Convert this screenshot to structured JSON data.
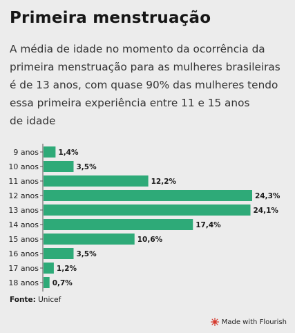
{
  "title": "Primeira menstruação",
  "subtitle_lines": [
    "A média de idade no momento da ocorrência da",
    "primeira menstruação para as mulheres brasileiras",
    "é de 13 anos, com quase 90% das mulheres tendo",
    "essa primeira experiência entre 11 e 15 anos",
    "de idade"
  ],
  "source_label": "Fonte:",
  "source_value": "Unicef",
  "credit": "Made with Flourish",
  "colors": {
    "bar": "#2eaa78",
    "background": "#ececec",
    "logo": "#d63b2f"
  },
  "chart_data": {
    "type": "bar",
    "orientation": "horizontal",
    "categories": [
      "9 anos",
      "10 anos",
      "11 anos",
      "12 anos",
      "13 anos",
      "14 anos",
      "15 anos",
      "16 anos",
      "17 anos",
      "18 anos"
    ],
    "values": [
      1.4,
      3.5,
      12.2,
      24.3,
      24.1,
      17.4,
      10.6,
      3.5,
      1.2,
      0.7
    ],
    "value_labels": [
      "1,4%",
      "3,5%",
      "12,2%",
      "24,3%",
      "24,1%",
      "17,4%",
      "10,6%",
      "3,5%",
      "1,2%",
      "0,7%"
    ],
    "xlim": [
      0,
      24.3
    ]
  }
}
